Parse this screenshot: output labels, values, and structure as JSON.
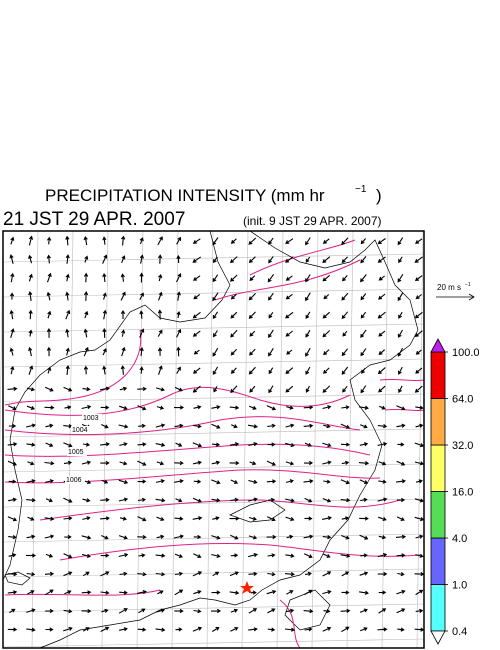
{
  "header": {
    "title": "PRECIPITATION INTENSITY (mm hr",
    "title_superscript": "−1",
    "title_close": ")",
    "valid_time": "21 JST 29 APR. 2007",
    "init_time": "(init. 9 JST 29 APR. 2007)"
  },
  "reference_vector": {
    "label": "20 m s",
    "label_superscript": "−1"
  },
  "colorbar": {
    "levels": [
      {
        "value": 0.4,
        "label": "0.4"
      },
      {
        "value": 1,
        "label": "1.0"
      },
      {
        "value": 4,
        "label": "4.0"
      },
      {
        "value": 16,
        "label": "16.0"
      },
      {
        "value": 32,
        "label": "32.0"
      },
      {
        "value": 64,
        "label": "64.0"
      },
      {
        "value": 100,
        "label": "100.0"
      }
    ],
    "colors": [
      "#55ffff",
      "#6666ff",
      "#55dd55",
      "#ffff66",
      "#ffaa44",
      "#ee0000"
    ],
    "below_color": "#ffffff",
    "above_color": "#bb22ee"
  },
  "map": {
    "isobar_labels": [
      "1003",
      "1004",
      "1005",
      "1006"
    ]
  }
}
